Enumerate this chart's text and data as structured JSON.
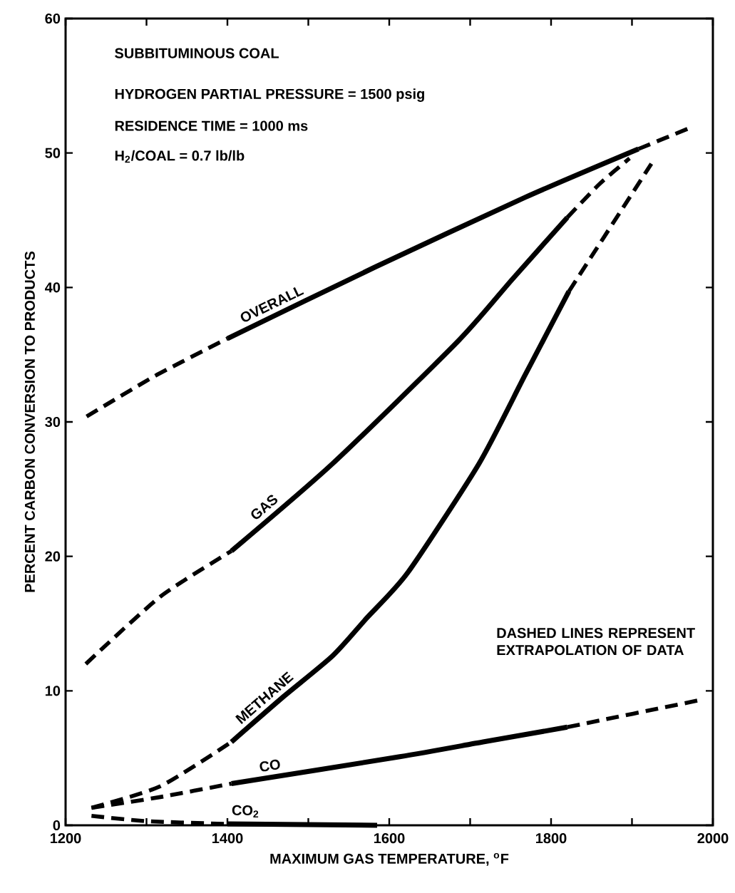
{
  "chart_data": {
    "type": "line",
    "xlabel": "MAXIMUM GAS TEMPERATURE, $^{o}$F",
    "ylabel": "PERCENT CARBON CONVERSION TO PRODUCTS",
    "xlim": [
      1200,
      2000
    ],
    "ylim": [
      0,
      60
    ],
    "xticks": [
      1200,
      {
        "value": 1300,
        "label": null
      },
      1400,
      {
        "value": 1500,
        "label": null
      },
      1600,
      {
        "value": 1700,
        "label": null
      },
      1800,
      {
        "value": 1900,
        "label": null
      },
      2000
    ],
    "yticks": [
      0,
      10,
      20,
      30,
      40,
      50,
      60
    ],
    "grid": false,
    "legend": false,
    "marker": "none",
    "annotations": [
      "SUBBITUMINOUS COAL",
      "HYDROGEN PARTIAL PRESSURE = 1500 psig",
      "RESIDENCE TIME = 1000 ms",
      "H$_{2}$/COAL = 0.7 lb/lb",
      "DASHED LINES REPRESENT EXTRAPOLATION OF DATA"
    ],
    "series": [
      {
        "color": "#000000",
        "line_style": "dashed",
        "x": [
          1226,
          1310,
          1400
        ],
        "values": [
          30.4,
          33.4,
          36.2
        ]
      },
      {
        "name": "OVERALL",
        "color": "#000000",
        "line_style": "solid",
        "x": [
          1400,
          1582,
          1768,
          1908
        ],
        "values": [
          36.2,
          41.5,
          46.7,
          50.3
        ]
      },
      {
        "color": "#000000",
        "line_style": "dashed",
        "x": [
          1908,
          1973
        ],
        "values": [
          50.3,
          51.9
        ]
      },
      {
        "color": "#000000",
        "line_style": "dashed",
        "x": [
          1225,
          1317,
          1405
        ],
        "values": [
          12.0,
          17.0,
          20.4
        ]
      },
      {
        "name": "GAS",
        "color": "#000000",
        "line_style": "solid",
        "x": [
          1405,
          1530,
          1685,
          1752,
          1820
        ],
        "values": [
          20.4,
          26.9,
          36.0,
          40.6,
          45.2
        ]
      },
      {
        "color": "#000000",
        "line_style": "dashed",
        "x": [
          1820,
          1860,
          1897
        ],
        "values": [
          45.2,
          47.7,
          49.6
        ]
      },
      {
        "color": "#000000",
        "line_style": "dashed",
        "x": [
          1232,
          1317,
          1405
        ],
        "values": [
          1.3,
          2.9,
          6.2
        ]
      },
      {
        "name": "METHANE",
        "color": "#000000",
        "line_style": "solid",
        "x": [
          1405,
          1468,
          1530,
          1572,
          1623,
          1711,
          1768,
          1822
        ],
        "values": [
          6.2,
          9.5,
          12.6,
          15.4,
          18.8,
          26.9,
          33.5,
          39.7
        ]
      },
      {
        "color": "#000000",
        "line_style": "dashed",
        "x": [
          1822,
          1924
        ],
        "values": [
          39.7,
          49.2
        ]
      },
      {
        "color": "#000000",
        "line_style": "dashed",
        "x": [
          1232,
          1317,
          1405
        ],
        "values": [
          1.3,
          2.1,
          3.1
        ]
      },
      {
        "name": "CO",
        "color": "#000000",
        "line_style": "solid",
        "x": [
          1405,
          1613,
          1716,
          1820
        ],
        "values": [
          3.1,
          5.1,
          6.2,
          7.3
        ]
      },
      {
        "color": "#000000",
        "line_style": "dashed",
        "x": [
          1820,
          1983
        ],
        "values": [
          7.3,
          9.3
        ]
      },
      {
        "color": "#000000",
        "line_style": "dashed",
        "x": [
          1232,
          1302,
          1400
        ],
        "values": [
          0.7,
          0.3,
          0.1
        ]
      },
      {
        "name": "CO$_{2}$",
        "color": "#000000",
        "line_style": "solid",
        "x": [
          1400,
          1585
        ],
        "values": [
          0.1,
          0
        ]
      }
    ]
  }
}
